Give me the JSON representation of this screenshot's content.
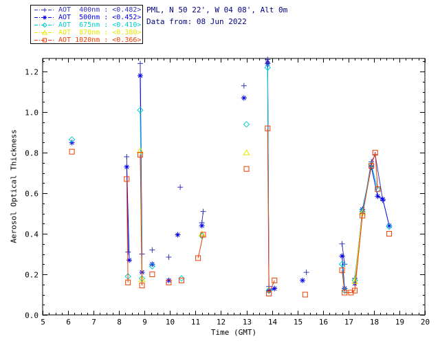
{
  "header": {
    "title_line1": "PML, N 50 22', W 04 08', Alt 0m",
    "title_line2": "Data from: 08 Jun 2022",
    "title_color": "#000080"
  },
  "colors": {
    "axis": "#000000",
    "tick_text": "#000000",
    "background": "#ffffff",
    "legend_border": "#000000"
  },
  "chart_data": {
    "type": "scatter",
    "title": "PML, N 50 22', W 04 08', Alt 0m",
    "subtitle": "Data from: 08 Jun 2022",
    "xlabel": "Time (GMT)",
    "ylabel": "Aerosol Optical Thickness",
    "xlim": [
      5,
      20
    ],
    "ylim": [
      0,
      1.265
    ],
    "xticks": [
      5,
      6,
      7,
      8,
      9,
      10,
      11,
      12,
      13,
      14,
      15,
      16,
      17,
      18,
      19,
      20
    ],
    "xtick_labels": [
      "5",
      "6",
      "7",
      "8",
      "9",
      "10",
      "11",
      "12",
      "13",
      "14",
      "15",
      "16",
      "17",
      "18",
      "19",
      "20"
    ],
    "yticks": [
      0.0,
      0.2,
      0.4,
      0.6,
      0.8,
      1.0,
      1.2
    ],
    "ytick_labels": [
      "0.0",
      "0.2",
      "0.4",
      "0.6",
      "0.8",
      "1.0",
      "1.2"
    ],
    "x_minor_step": 0.25,
    "y_minor_step": 0.05,
    "grid": false,
    "legend_position": "top-left",
    "connect_max_dx": 0.35,
    "offscale_arrow": {
      "x": 13.83
    },
    "series": [
      {
        "name": "AOT 400nm",
        "label": "AOT  400nm : <0.482>",
        "mean": 0.482,
        "color": "#3333bb",
        "marker": "plus",
        "points": [
          [
            8.3,
            0.78
          ],
          [
            8.35,
            0.31
          ],
          [
            8.83,
            1.24
          ],
          [
            8.9,
            0.3
          ],
          [
            9.3,
            0.32
          ],
          [
            9.95,
            0.285
          ],
          [
            10.4,
            0.63
          ],
          [
            11.25,
            0.455
          ],
          [
            11.3,
            0.51
          ],
          [
            12.9,
            1.13
          ],
          [
            13.83,
            1.26
          ],
          [
            13.88,
            0.14
          ],
          [
            15.35,
            0.21
          ],
          [
            16.75,
            0.35
          ],
          [
            16.85,
            0.25
          ],
          [
            17.25,
            0.18
          ],
          [
            17.55,
            0.5
          ],
          [
            17.9,
            0.755
          ],
          [
            18.05,
            0.79
          ],
          [
            18.35,
            0.565
          ]
        ]
      },
      {
        "name": "AOT 500nm",
        "label": "AOT  500nm : <0.452>",
        "mean": 0.452,
        "color": "#0000ee",
        "marker": "asterisk",
        "points": [
          [
            6.15,
            0.85
          ],
          [
            8.3,
            0.73
          ],
          [
            8.4,
            0.27
          ],
          [
            8.83,
            1.18
          ],
          [
            8.9,
            0.21
          ],
          [
            9.3,
            0.25
          ],
          [
            9.95,
            0.17
          ],
          [
            10.3,
            0.395
          ],
          [
            11.25,
            0.44
          ],
          [
            12.9,
            1.07
          ],
          [
            13.83,
            1.24
          ],
          [
            13.88,
            0.12
          ],
          [
            14.1,
            0.13
          ],
          [
            15.2,
            0.17
          ],
          [
            16.75,
            0.29
          ],
          [
            16.85,
            0.13
          ],
          [
            17.25,
            0.155
          ],
          [
            17.55,
            0.52
          ],
          [
            17.9,
            0.73
          ],
          [
            18.15,
            0.585
          ],
          [
            18.35,
            0.57
          ],
          [
            18.6,
            0.44
          ]
        ]
      },
      {
        "name": "AOT 675nm",
        "label": "AOT  675nm : <0.410>",
        "mean": 0.41,
        "color": "#00cccc",
        "marker": "diamond",
        "points": [
          [
            6.15,
            0.865
          ],
          [
            8.35,
            0.19
          ],
          [
            8.83,
            1.01
          ],
          [
            8.9,
            0.18
          ],
          [
            9.3,
            0.24
          ],
          [
            10.45,
            0.18
          ],
          [
            11.25,
            0.39
          ],
          [
            13.0,
            0.94
          ],
          [
            13.83,
            1.22
          ],
          [
            13.88,
            0.12
          ],
          [
            16.75,
            0.25
          ],
          [
            16.85,
            0.12
          ],
          [
            17.25,
            0.17
          ],
          [
            17.55,
            0.51
          ],
          [
            17.9,
            0.74
          ],
          [
            18.15,
            0.62
          ],
          [
            18.6,
            0.435
          ]
        ]
      },
      {
        "name": "AOT 870nm",
        "label": "AOT  870nm : <0.380>",
        "mean": 0.38,
        "color": "#e6e600",
        "marker": "triangle",
        "points": [
          [
            8.83,
            0.81
          ],
          [
            8.9,
            0.175
          ],
          [
            11.25,
            0.4
          ],
          [
            13.0,
            0.8
          ],
          [
            17.25,
            0.165
          ],
          [
            17.55,
            0.505
          ]
        ]
      },
      {
        "name": "AOT 1020nm",
        "label": "AOT 1020nm : <0.366>",
        "mean": 0.366,
        "color": "#ee3c00",
        "marker": "square",
        "points": [
          [
            6.15,
            0.805
          ],
          [
            8.3,
            0.67
          ],
          [
            8.35,
            0.16
          ],
          [
            8.83,
            0.79
          ],
          [
            8.9,
            0.145
          ],
          [
            9.3,
            0.2
          ],
          [
            9.95,
            0.16
          ],
          [
            10.45,
            0.17
          ],
          [
            11.1,
            0.28
          ],
          [
            11.3,
            0.395
          ],
          [
            13.0,
            0.72
          ],
          [
            13.83,
            0.92
          ],
          [
            13.88,
            0.105
          ],
          [
            14.1,
            0.17
          ],
          [
            15.3,
            0.1
          ],
          [
            16.75,
            0.22
          ],
          [
            16.85,
            0.11
          ],
          [
            17.1,
            0.11
          ],
          [
            17.25,
            0.12
          ],
          [
            17.55,
            0.49
          ],
          [
            17.9,
            0.735
          ],
          [
            18.05,
            0.8
          ],
          [
            18.15,
            0.62
          ],
          [
            18.6,
            0.4
          ]
        ]
      }
    ]
  }
}
